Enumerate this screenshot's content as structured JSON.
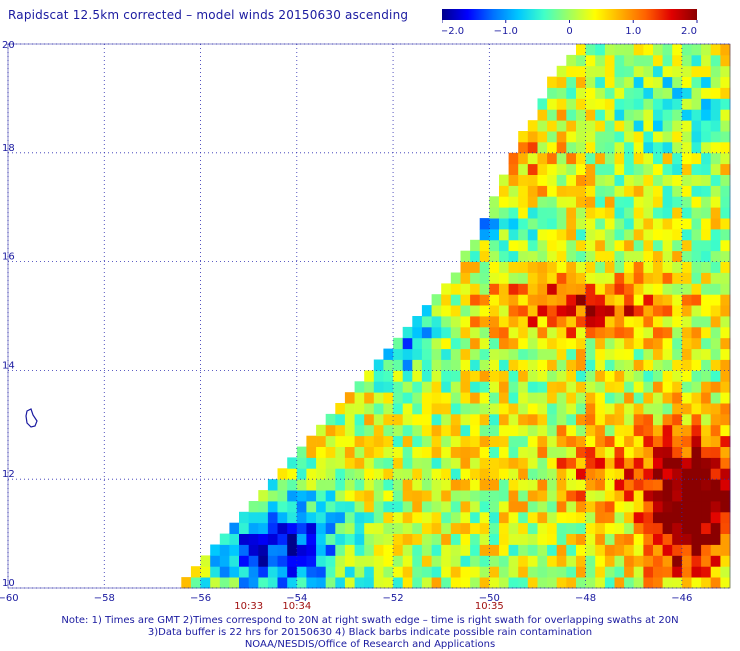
{
  "title": "Rapidscat 12.5km corrected – model winds 20150630 ascending",
  "colorbar": {
    "tick_labels": [
      "−2.0",
      "−1.0",
      "0",
      "1.0",
      "2.0"
    ],
    "tick_values": [
      -2.0,
      -1.0,
      0,
      1.0,
      2.0
    ],
    "colors": [
      "#00008b",
      "#0000ff",
      "#0070ff",
      "#00c8ff",
      "#40ffc8",
      "#a0ff60",
      "#ffff00",
      "#ffb000",
      "#ff6000",
      "#e00000",
      "#8b0000"
    ]
  },
  "map": {
    "lon_range": [
      -60,
      -45
    ],
    "lat_range": [
      10,
      20
    ],
    "x_tick_labels": [
      "−60",
      "−58",
      "−56",
      "−54",
      "−52",
      "−50",
      "−48",
      "−46"
    ],
    "x_tick_values": [
      -60,
      -58,
      -56,
      -54,
      -52,
      -50,
      -48,
      -46
    ],
    "y_tick_labels": [
      "10",
      "12",
      "14",
      "16",
      "18",
      "20"
    ],
    "y_tick_values": [
      10,
      12,
      14,
      16,
      18,
      20
    ],
    "grid": "dotted",
    "time_labels": [
      {
        "text": "10:33",
        "lon": -55.0
      },
      {
        "text": "10:34",
        "lon": -54.0
      },
      {
        "text": "10:35",
        "lon": -50.0
      }
    ],
    "swath_west_edge": [
      [
        -56.6,
        10.0
      ],
      [
        -55.5,
        11.0
      ],
      [
        -53.5,
        12.9
      ],
      [
        -51.7,
        14.7
      ],
      [
        -50.7,
        15.8
      ],
      [
        -49.8,
        17.3
      ],
      [
        -49.3,
        18.3
      ],
      [
        -48.6,
        19.5
      ],
      [
        -48.2,
        20.0
      ]
    ]
  },
  "notes": [
    "Note: 1) Times are GMT 2)Times correspond to 20N at right swath edge – time is right swath for overlapping swaths at 20N",
    "3)Data buffer is 22 hrs for 20150630 4) Black barbs indicate possible rain contamination",
    "NOAA/NESDIS/Office of Research and Applications"
  ]
}
